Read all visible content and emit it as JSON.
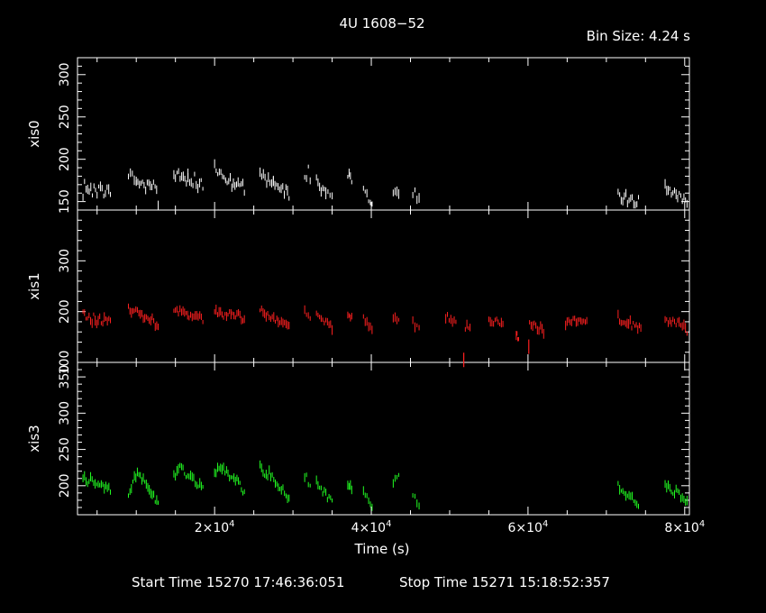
{
  "chart_data": {
    "type": "scatter",
    "title": "4U 1608−52",
    "bin_size": "Bin Size: 4.24 s",
    "xlabel": "Time (s)",
    "xlim": [
      2500,
      80600
    ],
    "x_ticks": [
      {
        "value": 20000,
        "mantissa": "2×10",
        "exp": "4"
      },
      {
        "value": 40000,
        "mantissa": "4×10",
        "exp": "4"
      },
      {
        "value": 60000,
        "mantissa": "6×10",
        "exp": "4"
      },
      {
        "value": 80000,
        "mantissa": "8×10",
        "exp": "4"
      }
    ],
    "footer": {
      "start": "Start Time 15270 17:46:36:051",
      "stop": "Stop Time 15271 15:18:52:357"
    },
    "panels": [
      {
        "name": "xis0",
        "ylabel": "xis0",
        "color": "#ffffff",
        "ylim": [
          140,
          320
        ],
        "ticks": [
          150,
          200,
          250,
          300
        ],
        "segments": [
          {
            "x0": 3200,
            "x1": 4800,
            "values": [
              155,
              172,
              163,
              168,
              150,
              175,
              160,
              158,
              170,
              165
            ]
          },
          {
            "x0": 5000,
            "x1": 6700,
            "values": [
              158,
              164,
              175,
              160,
              168,
              152,
              163,
              170,
              161,
              158
            ]
          },
          {
            "x0": 9000,
            "x1": 10000,
            "values": [
              180,
              188,
              175,
              182,
              168,
              176,
              172
            ]
          },
          {
            "x0": 10000,
            "x1": 12800,
            "values": [
              172,
              175,
              168,
              174,
              160,
              176,
              170,
              166,
              172,
              168,
              148
            ]
          },
          {
            "x0": 14800,
            "x1": 16600,
            "values": [
              185,
              178,
              190,
              174,
              182,
              176,
              170,
              180
            ]
          },
          {
            "x0": 16600,
            "x1": 18500,
            "values": [
              178,
              172,
              168,
              180,
              170,
              165,
              176,
              162
            ]
          },
          {
            "x0": 20000,
            "x1": 21400,
            "values": [
              195,
              188,
              180,
              186,
              176,
              182,
              174
            ]
          },
          {
            "x0": 21400,
            "x1": 23800,
            "values": [
              175,
              170,
              178,
              166,
              172,
              168,
              170,
              165,
              172,
              160
            ]
          },
          {
            "x0": 25800,
            "x1": 27500,
            "values": [
              185,
              178,
              182,
              174,
              180,
              170,
              176
            ]
          },
          {
            "x0": 27500,
            "x1": 29500,
            "values": [
              175,
              168,
              172,
              164,
              170,
              160,
              166,
              155
            ]
          },
          {
            "x0": 31500,
            "x1": 32200,
            "values": [
              180,
              175,
              190,
              178
            ]
          },
          {
            "x0": 33000,
            "x1": 34200,
            "values": [
              175,
              168,
              160,
              170,
              162
            ]
          },
          {
            "x0": 34200,
            "x1": 35000,
            "values": [
              160,
              158,
              156
            ]
          },
          {
            "x0": 37000,
            "x1": 37500,
            "values": [
              178,
              182,
              176
            ]
          },
          {
            "x0": 39000,
            "x1": 40100,
            "values": [
              165,
              160,
              155,
              150,
              146
            ]
          },
          {
            "x0": 42800,
            "x1": 43500,
            "values": [
              162,
              160,
              165,
              158
            ]
          },
          {
            "x0": 45300,
            "x1": 46100,
            "values": [
              160,
              165,
              152,
              148,
              155
            ]
          },
          {
            "x0": 71500,
            "x1": 74100,
            "values": [
              160,
              155,
              152,
              158,
              148,
              155,
              150,
              145,
              152
            ]
          },
          {
            "x0": 77500,
            "x1": 80300,
            "values": [
              170,
              162,
              165,
              158,
              160,
              155,
              162,
              150,
              155,
              148
            ]
          }
        ]
      },
      {
        "name": "xis1",
        "ylabel": "xis1",
        "color": "#ff2020",
        "ylim": [
          100,
          400
        ],
        "ticks": [
          100,
          200,
          300
        ],
        "segments": [
          {
            "x0": 3200,
            "x1": 6700,
            "values": [
              200,
              185,
              190,
              178,
              192,
              180,
              186,
              175,
              190,
              182,
              178
            ]
          },
          {
            "x0": 9000,
            "x1": 12800,
            "values": [
              205,
              198,
              195,
              202,
              190,
              196,
              185,
              192,
              180,
              186,
              172,
              165
            ]
          },
          {
            "x0": 14800,
            "x1": 18500,
            "values": [
              205,
              198,
              200,
              195,
              202,
              190,
              196,
              188,
              192,
              178
            ]
          },
          {
            "x0": 20000,
            "x1": 23800,
            "values": [
              200,
              195,
              198,
              190,
              196,
              192,
              188,
              195,
              185,
              190
            ]
          },
          {
            "x0": 25800,
            "x1": 29500,
            "values": [
              205,
              198,
              195,
              190,
              188,
              185,
              182,
              178,
              180,
              175
            ]
          },
          {
            "x0": 31500,
            "x1": 32200,
            "values": [
              198,
              200,
              192,
              185
            ]
          },
          {
            "x0": 33000,
            "x1": 35000,
            "values": [
              195,
              185,
              182,
              178,
              172,
              168
            ]
          },
          {
            "x0": 37000,
            "x1": 37500,
            "values": [
              192,
              195,
              188
            ]
          },
          {
            "x0": 39000,
            "x1": 40100,
            "values": [
              185,
              180,
              175,
              170,
              165
            ]
          },
          {
            "x0": 42800,
            "x1": 43500,
            "values": [
              192,
              188,
              186,
              190
            ]
          },
          {
            "x0": 45300,
            "x1": 46100,
            "values": [
              178,
              175,
              170,
              172
            ]
          },
          {
            "x0": 49500,
            "x1": 50800,
            "values": [
              188,
              190,
              180,
              184,
              182
            ]
          },
          {
            "x0": 52000,
            "x1": 52600,
            "values": [
              168,
              172,
              165
            ]
          },
          {
            "x0": 55000,
            "x1": 56800,
            "values": [
              180,
              178,
              182,
              176,
              174
            ]
          },
          {
            "x0": 58500,
            "x1": 58800,
            "values": [
              155,
              150
            ]
          },
          {
            "x0": 60200,
            "x1": 62000,
            "values": [
              178,
              170,
              175,
              165,
              168,
              158
            ]
          },
          {
            "x0": 64800,
            "x1": 67500,
            "values": [
              175,
              178,
              185,
              180,
              188,
              182,
              185
            ]
          },
          {
            "x0": 71500,
            "x1": 74400,
            "values": [
              190,
              182,
              178,
              175,
              180,
              172,
              176,
              170,
              165
            ]
          },
          {
            "x0": 77500,
            "x1": 80300,
            "values": [
              185,
              180,
              178,
              182,
              175,
              178,
              170,
              172,
              162
            ]
          }
        ],
        "dips": [
          {
            "x": 51800,
            "value": 112
          },
          {
            "x": 60100,
            "value": 138
          }
        ]
      },
      {
        "name": "xis3",
        "ylabel": "xis3",
        "color": "#22ff22",
        "ylim": [
          160,
          370
        ],
        "ticks": [
          200,
          250,
          300,
          350
        ],
        "segments": [
          {
            "x0": 3200,
            "x1": 6700,
            "values": [
              212,
              208,
              205,
              210,
              200,
              206,
              198,
              204,
              195,
              200,
              188
            ]
          },
          {
            "x0": 9000,
            "x1": 12800,
            "values": [
              188,
              200,
              210,
              218,
              212,
              208,
              200,
              195,
              190,
              182,
              178
            ]
          },
          {
            "x0": 14800,
            "x1": 18500,
            "values": [
              212,
              218,
              225,
              220,
              214,
              218,
              210,
              205,
              200,
              195
            ]
          },
          {
            "x0": 20000,
            "x1": 23800,
            "values": [
              215,
              225,
              228,
              220,
              218,
              210,
              212,
              205,
              198,
              190
            ]
          },
          {
            "x0": 25800,
            "x1": 29500,
            "values": [
              225,
              220,
              215,
              218,
              210,
              205,
              198,
              195,
              190,
              182
            ]
          },
          {
            "x0": 31500,
            "x1": 32200,
            "values": [
              210,
              215,
              205,
              200
            ]
          },
          {
            "x0": 33000,
            "x1": 35000,
            "values": [
              205,
              198,
              192,
              188,
              182,
              178
            ]
          },
          {
            "x0": 37000,
            "x1": 37500,
            "values": [
              198,
              200,
              195
            ]
          },
          {
            "x0": 39000,
            "x1": 40100,
            "values": [
              195,
              190,
              186,
              180,
              172
            ]
          },
          {
            "x0": 42800,
            "x1": 43500,
            "values": [
              205,
              210,
              208,
              212
            ]
          },
          {
            "x0": 45300,
            "x1": 46100,
            "values": [
              190,
              182,
              178,
              172
            ]
          },
          {
            "x0": 71500,
            "x1": 74100,
            "values": [
              200,
              195,
              192,
              188,
              185,
              190,
              182,
              178,
              175
            ]
          },
          {
            "x0": 77500,
            "x1": 80300,
            "values": [
              202,
              198,
              195,
              190,
              192,
              188,
              186,
              182,
              180
            ]
          }
        ]
      }
    ]
  }
}
